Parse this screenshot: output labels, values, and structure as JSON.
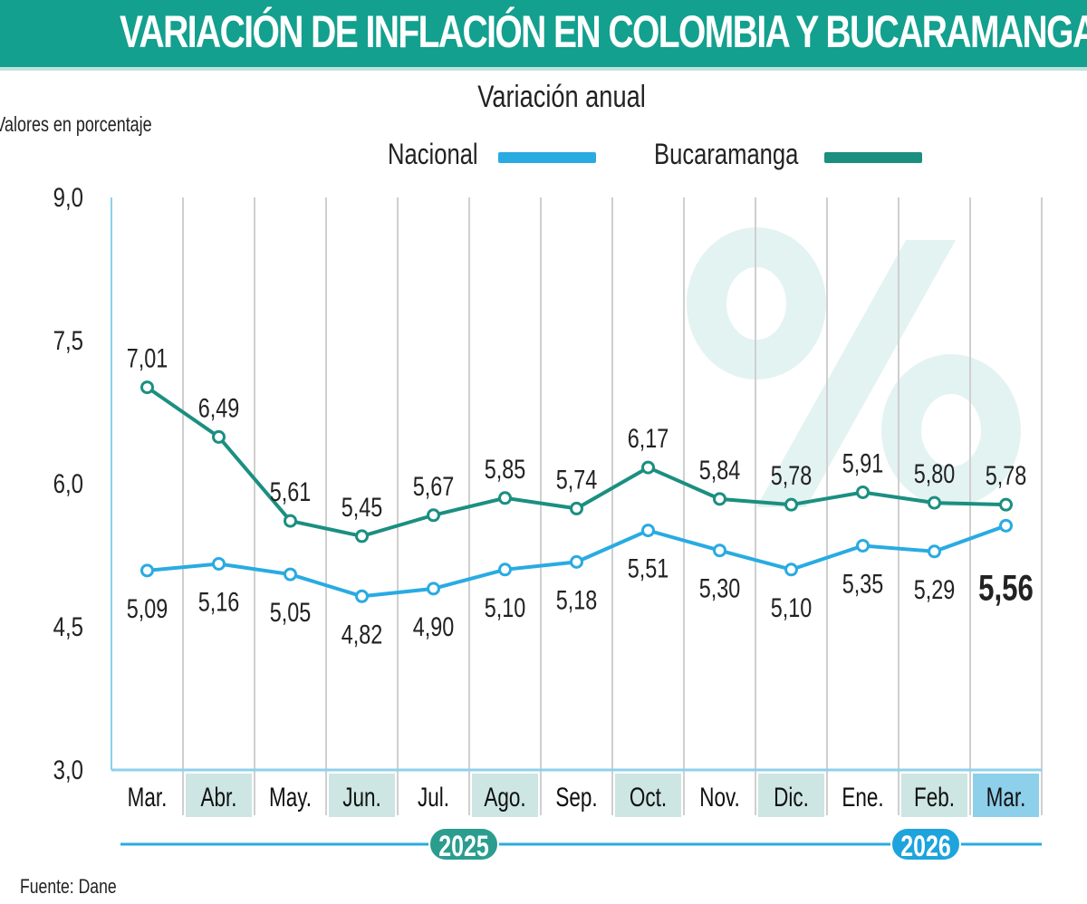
{
  "header": {
    "title": "VARIACIÓN DE INFLACIÓN EN COLOMBIA Y BUCARAMANGA"
  },
  "source": "Fuente: Dane",
  "colors": {
    "title_bar": "#13a08e",
    "nacional": "#29abe2",
    "bucaramanga": "#1b8f80",
    "year_2025": "#2a9d8f",
    "year_2026": "#1ea4dc",
    "watermark": "#e3f3f1"
  },
  "watermark": "%",
  "chart_data": {
    "type": "line",
    "title": "Variación anual",
    "ylabel": "Valores en porcentaje",
    "xlabel": "",
    "ylim": [
      3.0,
      9.0
    ],
    "yticks": [
      "3,0",
      "4,5",
      "6,0",
      "7,5",
      "9,0"
    ],
    "ytick_values": [
      3.0,
      4.5,
      6.0,
      7.5,
      9.0
    ],
    "categories": [
      "Mar.",
      "Abr.",
      "May.",
      "Jun.",
      "Jul.",
      "Ago.",
      "Sep.",
      "Oct.",
      "Nov.",
      "Dic.",
      "Ene.",
      "Feb.",
      "Mar."
    ],
    "years": [
      "2025",
      "2026"
    ],
    "legend": "top",
    "grid": "vertical",
    "series": [
      {
        "name": "Nacional",
        "values": [
          5.09,
          5.16,
          5.05,
          4.82,
          4.9,
          5.1,
          5.18,
          5.51,
          5.3,
          5.1,
          5.35,
          5.29,
          5.56
        ],
        "labels": [
          "5,09",
          "5,16",
          "5,05",
          "4,82",
          "4,90",
          "5,10",
          "5,18",
          "5,51",
          "5,30",
          "5,10",
          "5,35",
          "5,29",
          "5,56"
        ]
      },
      {
        "name": "Bucaramanga",
        "values": [
          7.01,
          6.49,
          5.61,
          5.45,
          5.67,
          5.85,
          5.74,
          6.17,
          5.84,
          5.78,
          5.91,
          5.8,
          5.78
        ],
        "labels": [
          "7,01",
          "6,49",
          "5,61",
          "5,45",
          "5,67",
          "5,85",
          "5,74",
          "6,17",
          "5,84",
          "5,78",
          "5,91",
          "5,80",
          "5,78"
        ]
      }
    ]
  }
}
